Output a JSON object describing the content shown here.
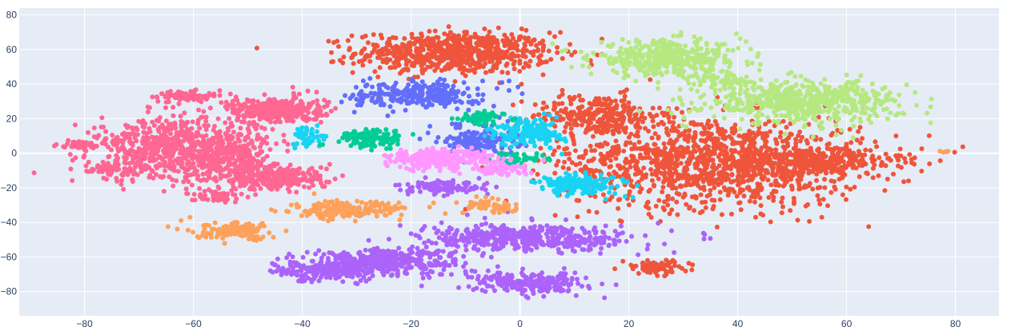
{
  "chart_data": {
    "type": "scatter",
    "title": "",
    "xlabel": "",
    "ylabel": "",
    "xlim": [
      -92,
      88
    ],
    "ylim": [
      -94,
      84
    ],
    "xticks": [
      -80,
      -60,
      -40,
      -20,
      0,
      20,
      40,
      60,
      80
    ],
    "yticks": [
      -80,
      -60,
      -40,
      -20,
      0,
      20,
      40,
      60,
      80
    ],
    "xtick_labels": [
      "−80",
      "−60",
      "−40",
      "−20",
      "0",
      "20",
      "40",
      "60",
      "80"
    ],
    "ytick_labels": [
      "−80",
      "−60",
      "−40",
      "−20",
      "0",
      "20",
      "40",
      "60",
      "80"
    ],
    "grid": true,
    "legend": "none",
    "colors": {
      "plot_bg": "#e5ecf6",
      "grid": "#ffffff",
      "tick_text": "#2a3f5f"
    },
    "clusters": [
      {
        "color": "#ef553b",
        "cx": -12,
        "cy": 58,
        "sx": 9,
        "sy": 6,
        "n": 700
      },
      {
        "color": "#ef553b",
        "cx": 14,
        "cy": 22,
        "sx": 6,
        "sy": 6,
        "n": 260
      },
      {
        "color": "#ef553b",
        "cx": 35,
        "cy": -5,
        "sx": 14,
        "sy": 13,
        "n": 1300
      },
      {
        "color": "#ef553b",
        "cx": 56,
        "cy": -5,
        "sx": 7,
        "sy": 4,
        "n": 250
      },
      {
        "color": "#ef553b",
        "cx": 25,
        "cy": -66,
        "sx": 3,
        "sy": 2,
        "n": 80
      },
      {
        "color": "#b6e880",
        "cx": 27,
        "cy": 55,
        "sx": 7,
        "sy": 5,
        "n": 420
      },
      {
        "color": "#b6e880",
        "cx": 52,
        "cy": 30,
        "sx": 9,
        "sy": 6,
        "n": 560
      },
      {
        "color": "#b6e880",
        "cx": 38,
        "cy": 42,
        "sx": 3,
        "sy": 3,
        "n": 60
      },
      {
        "color": "#ff6692",
        "cx": -64,
        "cy": 2,
        "sx": 7,
        "sy": 9,
        "n": 650
      },
      {
        "color": "#ff6692",
        "cx": -52,
        "cy": 0,
        "sx": 4,
        "sy": 7,
        "n": 220
      },
      {
        "color": "#ff6692",
        "cx": -45,
        "cy": 25,
        "sx": 4.5,
        "sy": 4,
        "n": 320
      },
      {
        "color": "#ff6692",
        "cx": -45,
        "cy": -14,
        "sx": 5,
        "sy": 3.5,
        "n": 300
      },
      {
        "color": "#ff6692",
        "cx": -62,
        "cy": 33,
        "sx": 2.5,
        "sy": 1.8,
        "n": 70
      },
      {
        "color": "#ff6692",
        "cx": -81,
        "cy": 5,
        "sx": 1.5,
        "sy": 1,
        "n": 40
      },
      {
        "color": "#ff6692",
        "cx": -56,
        "cy": -25,
        "sx": 2.5,
        "sy": 1.5,
        "n": 60
      },
      {
        "color": "#ff6692",
        "cx": -76,
        "cy": -8,
        "sx": 2,
        "sy": 2,
        "n": 50
      },
      {
        "color": "#ab63fa",
        "cx": -25,
        "cy": -63,
        "sx": 7,
        "sy": 4,
        "n": 400
      },
      {
        "color": "#ab63fa",
        "cx": -37,
        "cy": -68,
        "sx": 4,
        "sy": 3,
        "n": 160
      },
      {
        "color": "#ab63fa",
        "cx": 2,
        "cy": -49,
        "sx": 10,
        "sy": 4,
        "n": 460
      },
      {
        "color": "#ab63fa",
        "cx": 2,
        "cy": -75,
        "sx": 5,
        "sy": 3,
        "n": 230
      },
      {
        "color": "#ab63fa",
        "cx": -14,
        "cy": -20,
        "sx": 4,
        "sy": 2,
        "n": 100
      },
      {
        "color": "#636efa",
        "cx": -19,
        "cy": 34,
        "sx": 6,
        "sy": 4,
        "n": 260
      },
      {
        "color": "#636efa",
        "cx": -7,
        "cy": 8,
        "sx": 3.5,
        "sy": 4,
        "n": 170
      },
      {
        "color": "#19d3f3",
        "cx": 2,
        "cy": 12,
        "sx": 3,
        "sy": 4,
        "n": 180
      },
      {
        "color": "#19d3f3",
        "cx": 11,
        "cy": -18,
        "sx": 4,
        "sy": 3,
        "n": 170
      },
      {
        "color": "#19d3f3",
        "cx": -39,
        "cy": 9,
        "sx": 2,
        "sy": 3,
        "n": 50
      },
      {
        "color": "#00cc96",
        "cx": -27,
        "cy": 9,
        "sx": 3,
        "sy": 2.5,
        "n": 130
      },
      {
        "color": "#00cc96",
        "cx": -7,
        "cy": 20,
        "sx": 2,
        "sy": 2,
        "n": 60
      },
      {
        "color": "#00cc96",
        "cx": 0,
        "cy": -3,
        "sx": 3,
        "sy": 1.5,
        "n": 50
      },
      {
        "color": "#ff97ff",
        "cx": -15,
        "cy": -3,
        "sx": 5,
        "sy": 3,
        "n": 260
      },
      {
        "color": "#ff97ff",
        "cx": -4,
        "cy": -9,
        "sx": 3,
        "sy": 2,
        "n": 70
      },
      {
        "color": "#ffa15a",
        "cx": -32,
        "cy": -33,
        "sx": 5,
        "sy": 2.5,
        "n": 190
      },
      {
        "color": "#ffa15a",
        "cx": -52,
        "cy": -45,
        "sx": 4,
        "sy": 2.5,
        "n": 130
      },
      {
        "color": "#ffa15a",
        "cx": -5,
        "cy": -31,
        "sx": 3,
        "sy": 2,
        "n": 60
      },
      {
        "color": "#ffa15a",
        "cx": 78,
        "cy": 1,
        "sx": 0.7,
        "sy": 0.4,
        "n": 5
      }
    ]
  }
}
